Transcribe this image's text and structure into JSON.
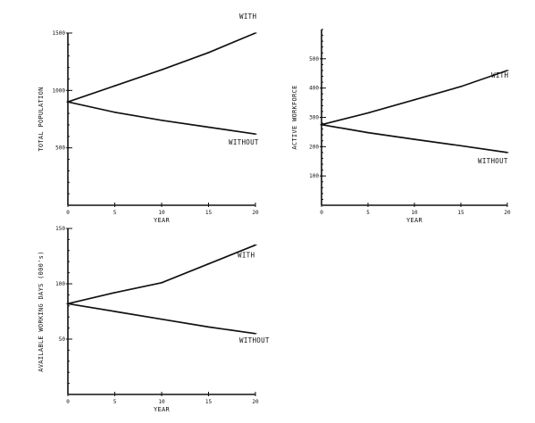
{
  "chart_data": [
    {
      "type": "line",
      "id": "total-population",
      "xlabel": "YEAR",
      "ylabel": "TOTAL POPULATION",
      "xlim": [
        0,
        20
      ],
      "ylim": [
        0,
        1500
      ],
      "xticks": [
        0,
        5,
        10,
        15,
        20
      ],
      "xtick_labels": [
        "0",
        "5",
        "10",
        "15",
        "20"
      ],
      "yticks": [
        500,
        1000,
        1500
      ],
      "ytick_labels": [
        "500",
        "1000",
        "1500"
      ],
      "series": [
        {
          "name": "WITH",
          "x": [
            0,
            5,
            10,
            15,
            20
          ],
          "y": [
            900,
            1040,
            1180,
            1330,
            1500
          ]
        },
        {
          "name": "WITHOUT",
          "x": [
            0,
            5,
            10,
            15,
            20
          ],
          "y": [
            900,
            810,
            740,
            680,
            620
          ]
        }
      ]
    },
    {
      "type": "line",
      "id": "active-workforce",
      "xlabel": "YEAR",
      "ylabel": "ACTIVE WORKFORCE",
      "xlim": [
        0,
        20
      ],
      "ylim": [
        0,
        600
      ],
      "xticks": [
        0,
        5,
        10,
        15,
        20
      ],
      "xtick_labels": [
        "0",
        "5",
        "10",
        "15",
        "20"
      ],
      "yticks": [
        100,
        200,
        300,
        400,
        500
      ],
      "ytick_labels": [
        "100",
        "200",
        "300",
        "400",
        "500"
      ],
      "series": [
        {
          "name": "WITH",
          "x": [
            0,
            5,
            10,
            15,
            20
          ],
          "y": [
            275,
            315,
            360,
            405,
            460
          ]
        },
        {
          "name": "WITHOUT",
          "x": [
            0,
            5,
            10,
            15,
            20
          ],
          "y": [
            275,
            248,
            225,
            203,
            180
          ]
        }
      ]
    },
    {
      "type": "line",
      "id": "available-working-days",
      "xlabel": "YEAR",
      "ylabel": "AVAILABLE WORKING DAYS (000's)",
      "xlim": [
        0,
        20
      ],
      "ylim": [
        0,
        150
      ],
      "xticks": [
        0,
        5,
        10,
        15,
        20
      ],
      "xtick_labels": [
        "0",
        "5",
        "10",
        "15",
        "20"
      ],
      "yticks": [
        50,
        100,
        150
      ],
      "ytick_labels": [
        "50",
        "100",
        "150"
      ],
      "series": [
        {
          "name": "WITH",
          "x": [
            0,
            5,
            10,
            15,
            20
          ],
          "y": [
            82,
            92,
            101,
            118,
            135
          ]
        },
        {
          "name": "WITHOUT",
          "x": [
            0,
            5,
            10,
            15,
            20
          ],
          "y": [
            82,
            75,
            68,
            61,
            55
          ]
        }
      ]
    }
  ]
}
